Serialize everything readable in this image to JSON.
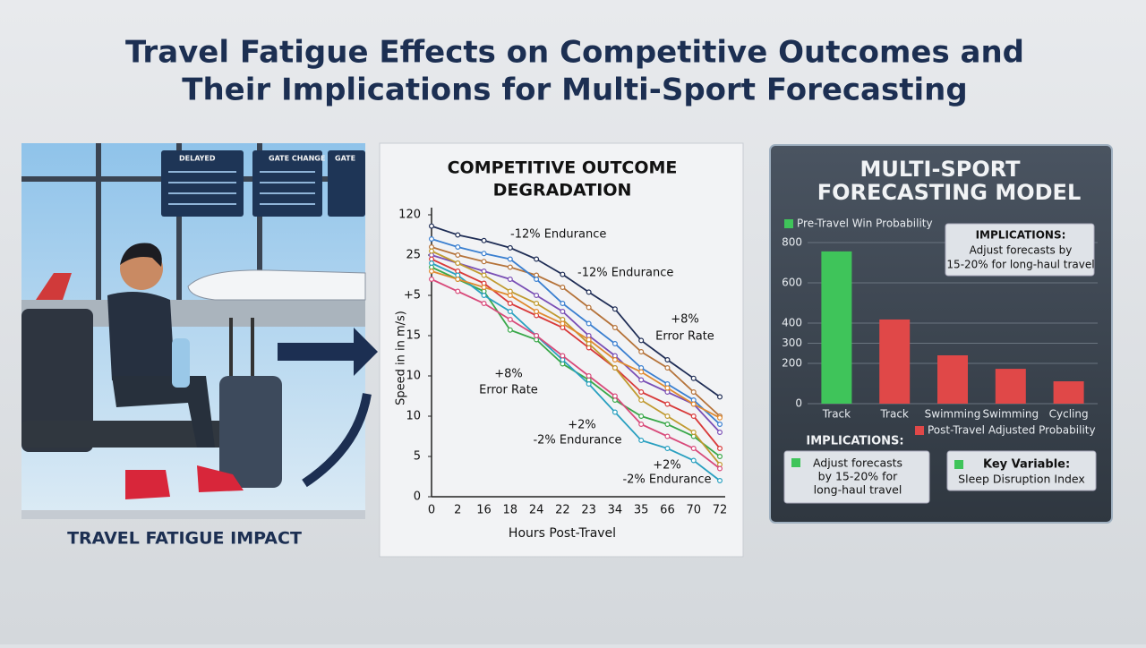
{
  "header": {
    "title_lines": [
      "Travel Fatigue Effects on Competitive Outcomes and",
      "Their Implications for Multi-Sport Forecasting"
    ]
  },
  "left_panel": {
    "caption": "TRAVEL FATIGUE IMPACT",
    "boards": [
      "DELAYED",
      "GATE CHANGE",
      "GATE"
    ]
  },
  "chart_data": [
    {
      "type": "line",
      "title_lines": [
        "COMPETITIVE OUTCOME",
        "DEGRADATION"
      ],
      "x_label": "Hours Post-Travel",
      "y_label": "Speed in in m/s)",
      "categories": [
        "0",
        "2",
        "16",
        "18",
        "24",
        "22",
        "23",
        "34",
        "35",
        "66",
        "70",
        "72"
      ],
      "ylim": [
        0,
        35
      ],
      "yticks": [
        0,
        5,
        10,
        {
          "value": 15,
          "label": "10"
        },
        {
          "value": 20,
          "label": "15"
        },
        {
          "value": 25,
          "label": "+5"
        },
        {
          "value": 30,
          "label": "25"
        },
        {
          "value": 35,
          "label": "120"
        }
      ],
      "series": [
        {
          "color": "#1f2d55",
          "values": [
            33.6,
            32.5,
            31.8,
            30.9,
            29.5,
            27.6,
            25.4,
            23.3,
            19.4,
            17,
            14.7,
            12.4
          ]
        },
        {
          "color": "#b5733a",
          "values": [
            31,
            30,
            29.2,
            28.5,
            27.5,
            26,
            23.5,
            21,
            18,
            16,
            13,
            10
          ]
        },
        {
          "color": "#3a7fd0",
          "values": [
            32,
            31,
            30.2,
            29.5,
            27,
            24,
            21.5,
            19,
            16,
            14,
            12,
            9
          ]
        },
        {
          "color": "#7a4fb5",
          "values": [
            30,
            29,
            28,
            27,
            25,
            23,
            20,
            17.5,
            14.5,
            13,
            11.5,
            8
          ]
        },
        {
          "color": "#d83a3a",
          "values": [
            29.5,
            28,
            26.5,
            24,
            22.5,
            21,
            18.5,
            16,
            13,
            11.5,
            10,
            6
          ]
        },
        {
          "color": "#3aa84a",
          "values": [
            28.5,
            27,
            25.5,
            20.7,
            19.5,
            16.5,
            14.5,
            12,
            10,
            9,
            7.5,
            5
          ]
        },
        {
          "color": "#2aa0c0",
          "values": [
            29,
            27.5,
            25,
            23,
            20,
            17,
            14,
            10.5,
            7,
            6,
            4.5,
            2
          ]
        },
        {
          "color": "#c09a30",
          "values": [
            30.5,
            29,
            27.5,
            25.5,
            24,
            22,
            19,
            16,
            12,
            10,
            8,
            4
          ]
        },
        {
          "color": "#d84a7a",
          "values": [
            27,
            25.5,
            24,
            22,
            20,
            17.5,
            15,
            12.5,
            9,
            7.5,
            6,
            3.5
          ]
        },
        {
          "color": "#e08a30",
          "values": [
            28,
            27,
            26,
            25,
            23,
            21.5,
            19.5,
            17,
            15.5,
            13.5,
            11.5,
            9.8
          ]
        }
      ],
      "annotations": [
        "-12% Endurance",
        "-12% Endurance",
        "+8%",
        "Error Rate",
        "+8%",
        "Error Rate",
        "+2%",
        "-2% Endurance",
        "+2%",
        "-2% Endurance"
      ]
    },
    {
      "type": "bar",
      "title_lines": [
        "MULTI-SPORT",
        "FORECASTING MODEL"
      ],
      "categories": [
        "Track",
        "Track",
        "Swimming",
        "Swimming",
        "Cycling"
      ],
      "values": [
        756,
        418,
        240,
        173,
        111
      ],
      "colors": [
        "#3fc45a",
        "#e04848",
        "#e04848",
        "#e04848",
        "#e04848"
      ],
      "ylim": [
        0,
        800
      ],
      "yticks": [
        0,
        200,
        300,
        400,
        600,
        800
      ],
      "grid": true,
      "legend": [
        {
          "label": "Pre-Travel Win Probability",
          "color": "#3fc45a"
        },
        {
          "label": "Post-Travel Adjusted Probability",
          "color": "#e04848"
        }
      ],
      "inset": {
        "title": "IMPLICATIONS:",
        "lines": [
          "Adjust forecasts by",
          "15-20% for long-haul travel"
        ]
      },
      "implications": {
        "title": "IMPLICATIONS:",
        "lines": [
          "Adjust forecasts",
          "by 15-20% for",
          "long-haul travel"
        ]
      },
      "key_variable": {
        "title": "Key Variable:",
        "text": "Sleep Disruption Index"
      }
    }
  ]
}
